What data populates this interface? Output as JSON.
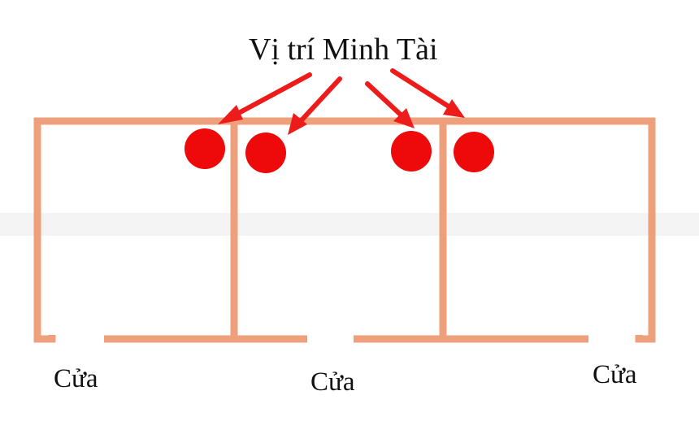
{
  "title": "Vị trí Minh Tài",
  "door_label": "Cửa",
  "doors": [
    {
      "id": "door-left",
      "label": "Cửa"
    },
    {
      "id": "door-middle",
      "label": "Cửa"
    },
    {
      "id": "door-right",
      "label": "Cửa"
    }
  ],
  "rooms": 3,
  "markers": 4,
  "colors": {
    "wall": "#ee9f7c",
    "marker": "#ee0a0a",
    "arrow": "#ee1b1b",
    "text": "#111111",
    "background": "#ffffff"
  }
}
